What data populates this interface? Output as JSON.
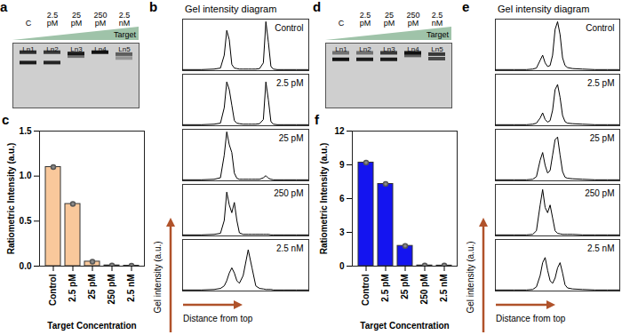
{
  "chart_data": [
    {
      "panel": "a",
      "type": "gel",
      "gradient_label": "Target",
      "categories": [
        "C",
        "2.5 pM",
        "25 pM",
        "250 pM",
        "2.5 nM"
      ],
      "lanes": [
        "Ln1",
        "Ln2",
        "Ln3",
        "Ln4",
        "Ln5"
      ],
      "ylim": [
        0,
        100
      ],
      "bands": [
        {
          "lane": "Ln1",
          "distance": 14,
          "intensity": 0.85
        },
        {
          "lane": "Ln1",
          "distance": 30,
          "intensity": 0.95
        },
        {
          "lane": "Ln2",
          "distance": 14,
          "intensity": 0.8
        },
        {
          "lane": "Ln2",
          "distance": 30,
          "intensity": 0.9
        },
        {
          "lane": "Ln3",
          "distance": 16,
          "intensity": 0.95
        },
        {
          "lane": "Ln3",
          "distance": 20,
          "intensity": 0.5
        },
        {
          "lane": "Ln4",
          "distance": 14,
          "intensity": 1.0
        },
        {
          "lane": "Ln5",
          "distance": 17,
          "intensity": 0.6
        },
        {
          "lane": "Ln5",
          "distance": 23,
          "intensity": 0.3
        }
      ]
    },
    {
      "panel": "b",
      "type": "line",
      "title": "Gel intensity diagram",
      "x_label": "Distance from top",
      "y_label": "Gel intensity (a.u.)",
      "xlim": [
        0,
        100
      ],
      "ylim": [
        0,
        1
      ],
      "tick_labels": false,
      "color": "#000000",
      "x": [
        0,
        15,
        25,
        30,
        33,
        35,
        37,
        39,
        41,
        43,
        45,
        48,
        52,
        55,
        58,
        61,
        64,
        66,
        68,
        70,
        72,
        75,
        80,
        90,
        100
      ],
      "series": [
        {
          "name": "Control",
          "values": [
            0.02,
            0.02,
            0.03,
            0.05,
            0.3,
            0.78,
            0.6,
            0.12,
            0.05,
            0.04,
            0.03,
            0.03,
            0.03,
            0.03,
            0.03,
            0.04,
            0.15,
            0.95,
            0.55,
            0.08,
            0.03,
            0.02,
            0.02,
            0.02,
            0.02
          ]
        },
        {
          "name": "2.5 pM",
          "values": [
            0.02,
            0.02,
            0.03,
            0.05,
            0.35,
            0.85,
            0.7,
            0.4,
            0.1,
            0.05,
            0.04,
            0.03,
            0.03,
            0.03,
            0.03,
            0.04,
            0.12,
            0.85,
            0.5,
            0.08,
            0.03,
            0.02,
            0.02,
            0.02,
            0.02
          ]
        },
        {
          "name": "25 pM",
          "values": [
            0.02,
            0.02,
            0.03,
            0.06,
            0.5,
            0.95,
            0.7,
            0.55,
            0.15,
            0.05,
            0.03,
            0.03,
            0.03,
            0.03,
            0.03,
            0.03,
            0.06,
            0.1,
            0.05,
            0.03,
            0.02,
            0.02,
            0.02,
            0.02,
            0.02
          ]
        },
        {
          "name": "250 pM",
          "values": [
            0.02,
            0.02,
            0.03,
            0.05,
            0.3,
            0.85,
            0.6,
            0.45,
            0.65,
            0.3,
            0.06,
            0.03,
            0.03,
            0.03,
            0.03,
            0.03,
            0.03,
            0.03,
            0.03,
            0.02,
            0.02,
            0.02,
            0.02,
            0.02,
            0.02
          ]
        },
        {
          "name": "2.5 nM",
          "values": [
            0.02,
            0.02,
            0.03,
            0.05,
            0.1,
            0.2,
            0.35,
            0.45,
            0.35,
            0.2,
            0.15,
            0.3,
            0.8,
            0.45,
            0.1,
            0.05,
            0.04,
            0.03,
            0.03,
            0.03,
            0.02,
            0.02,
            0.02,
            0.02,
            0.02
          ]
        }
      ]
    },
    {
      "panel": "c",
      "type": "bar",
      "x_label": "Target Concentration",
      "y_label": "Ratiometric Intensity (a.u.)",
      "categories": [
        "Control",
        "2.5 pM",
        "25 pM",
        "250 pM",
        "2.5 nM"
      ],
      "values": [
        1.1,
        0.69,
        0.05,
        0.008,
        0.005
      ],
      "errors": [
        0.01,
        0.01,
        0.01,
        0.003,
        0.002
      ],
      "color": "#f9c89b",
      "marker": "circle",
      "ylim": [
        0,
        1.5
      ],
      "yticks": [
        {
          "value": 0,
          "label": "0.0"
        },
        0.5,
        {
          "value": 1,
          "label": "1.0"
        },
        1.5
      ]
    },
    {
      "panel": "d",
      "type": "gel",
      "gradient_label": "Target",
      "categories": [
        "C",
        "2.5 pM",
        "25 pM",
        "250 pM",
        "2.5 nM"
      ],
      "lanes": [
        "Ln1",
        "Ln2",
        "Ln3",
        "Ln4",
        "Ln5"
      ],
      "ylim": [
        0,
        100
      ],
      "bands": [
        {
          "lane": "Ln1",
          "distance": 15,
          "intensity": 0.5
        },
        {
          "lane": "Ln1",
          "distance": 25,
          "intensity": 1.0
        },
        {
          "lane": "Ln2",
          "distance": 15,
          "intensity": 0.5
        },
        {
          "lane": "Ln2",
          "distance": 25,
          "intensity": 0.95
        },
        {
          "lane": "Ln3",
          "distance": 15,
          "intensity": 0.8
        },
        {
          "lane": "Ln3",
          "distance": 25,
          "intensity": 0.95
        },
        {
          "lane": "Ln4",
          "distance": 15,
          "intensity": 1.0
        },
        {
          "lane": "Ln4",
          "distance": 19,
          "intensity": 0.6
        },
        {
          "lane": "Ln5",
          "distance": 17,
          "intensity": 0.8
        },
        {
          "lane": "Ln5",
          "distance": 24,
          "intensity": 0.7
        }
      ]
    },
    {
      "panel": "e",
      "type": "line",
      "title": "Gel intensity diagram",
      "x_label": "Distance from top",
      "y_label": "Gel intensity (a.u.)",
      "xlim": [
        0,
        100
      ],
      "ylim": [
        0,
        1
      ],
      "tick_labels": false,
      "color": "#000000",
      "x": [
        0,
        15,
        25,
        30,
        33,
        36,
        38,
        40,
        42,
        44,
        46,
        48,
        50,
        52,
        54,
        56,
        58,
        62,
        70,
        80,
        90,
        100
      ],
      "series": [
        {
          "name": "Control",
          "values": [
            0.02,
            0.02,
            0.02,
            0.03,
            0.05,
            0.2,
            0.3,
            0.15,
            0.08,
            0.1,
            0.3,
            0.8,
            0.95,
            0.7,
            0.25,
            0.1,
            0.06,
            0.04,
            0.03,
            0.02,
            0.02,
            0.02
          ]
        },
        {
          "name": "2.5 pM",
          "values": [
            0.02,
            0.02,
            0.02,
            0.03,
            0.05,
            0.15,
            0.25,
            0.12,
            0.07,
            0.1,
            0.3,
            0.7,
            0.8,
            0.55,
            0.2,
            0.08,
            0.05,
            0.04,
            0.03,
            0.02,
            0.02,
            0.02
          ]
        },
        {
          "name": "25 pM",
          "values": [
            0.02,
            0.02,
            0.02,
            0.03,
            0.08,
            0.4,
            0.55,
            0.3,
            0.15,
            0.2,
            0.5,
            0.8,
            0.85,
            0.5,
            0.18,
            0.07,
            0.05,
            0.04,
            0.03,
            0.02,
            0.02,
            0.02
          ]
        },
        {
          "name": "250 pM",
          "values": [
            0.02,
            0.02,
            0.02,
            0.03,
            0.1,
            0.6,
            0.9,
            0.55,
            0.45,
            0.6,
            0.35,
            0.1,
            0.05,
            0.04,
            0.03,
            0.03,
            0.03,
            0.03,
            0.02,
            0.02,
            0.02,
            0.02
          ]
        },
        {
          "name": "2.5 nM",
          "values": [
            0.02,
            0.02,
            0.02,
            0.03,
            0.08,
            0.3,
            0.55,
            0.65,
            0.4,
            0.2,
            0.15,
            0.25,
            0.45,
            0.55,
            0.35,
            0.12,
            0.06,
            0.04,
            0.03,
            0.02,
            0.02,
            0.02
          ]
        }
      ]
    },
    {
      "panel": "f",
      "type": "bar",
      "x_label": "Target Concentration",
      "y_label": "Ratiometric Intensity (a.u.)",
      "categories": [
        "Control",
        "2.5 pM",
        "25 pM",
        "250 pM",
        "2.5 nM"
      ],
      "values": [
        9.2,
        7.3,
        1.8,
        0.06,
        0.05
      ],
      "errors": [
        0.1,
        0.08,
        0.06,
        0.02,
        0.02
      ],
      "color": "#1414f0",
      "marker": "circle",
      "ylim": [
        0,
        12
      ],
      "yticks": [
        0,
        3,
        6,
        9,
        12
      ]
    }
  ]
}
